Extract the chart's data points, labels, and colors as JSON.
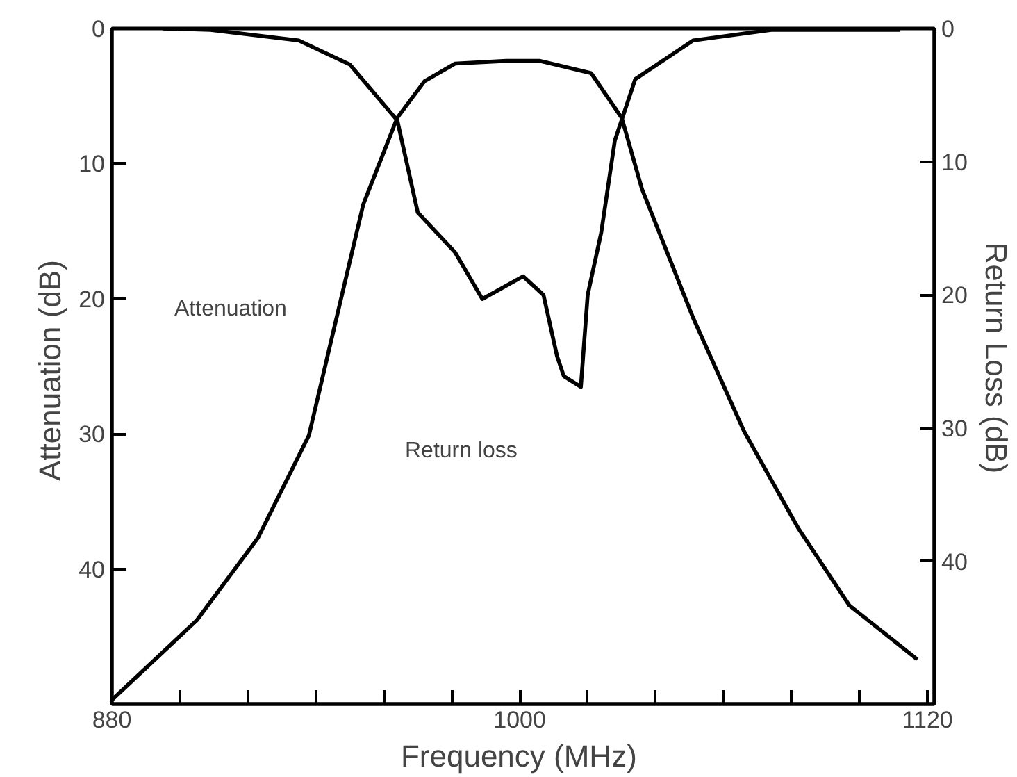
{
  "chart_data": {
    "type": "line",
    "xlabel": "Frequency  (MHz)",
    "ylabel": "Attenuation  (dB)",
    "y2label": "Return  Loss  (dB)",
    "xlim": [
      880,
      1122
    ],
    "ylim": [
      50,
      0
    ],
    "y2lim": [
      50.7,
      0
    ],
    "xticks": [
      880,
      {
        "value": 900,
        "label": null
      },
      {
        "value": 920,
        "label": null
      },
      {
        "value": 940,
        "label": null
      },
      {
        "value": 960,
        "label": null
      },
      {
        "value": 980,
        "label": null
      },
      1000,
      {
        "value": 1020,
        "label": null
      },
      {
        "value": 1040,
        "label": null
      },
      {
        "value": 1060,
        "label": null
      },
      {
        "value": 1080,
        "label": null
      },
      {
        "value": 1100,
        "label": null
      },
      1120
    ],
    "yticks": [
      0,
      10,
      20,
      30,
      40
    ],
    "y2ticks": [
      0,
      10,
      20,
      30,
      40
    ],
    "grid": false,
    "line_style": "solid",
    "series": [
      {
        "color": "#000000",
        "x": [
          880,
          905,
          923,
          938,
          945,
          954,
          964,
          972,
          981,
          996,
          1006,
          1011,
          1021,
          1030,
          1036,
          1051,
          1066,
          1082,
          1097,
          1117
        ],
        "values": [
          49.7,
          43.8,
          37.7,
          30.1,
          22.6,
          13.0,
          6.6,
          3.9,
          2.6,
          2.4,
          2.4,
          2.7,
          3.3,
          6.6,
          11.9,
          21.4,
          29.8,
          37.0,
          42.7,
          46.7
        ]
      },
      {
        "color": "#000000",
        "axis": "y2",
        "x": [
          895,
          909,
          935,
          950,
          964,
          970,
          981,
          989,
          1001,
          1007,
          1011,
          1013,
          1018,
          1020,
          1024,
          1028,
          1034,
          1051,
          1074,
          1112
        ],
        "values": [
          0,
          0.1,
          0.9,
          2.7,
          6.9,
          13.8,
          16.8,
          20.3,
          18.6,
          20.0,
          24.6,
          26.1,
          26.9,
          20.0,
          15.3,
          8.4,
          3.8,
          0.9,
          0.1,
          0.1
        ]
      }
    ],
    "annotations": [
      "Attenuation",
      "Return  loss"
    ]
  }
}
